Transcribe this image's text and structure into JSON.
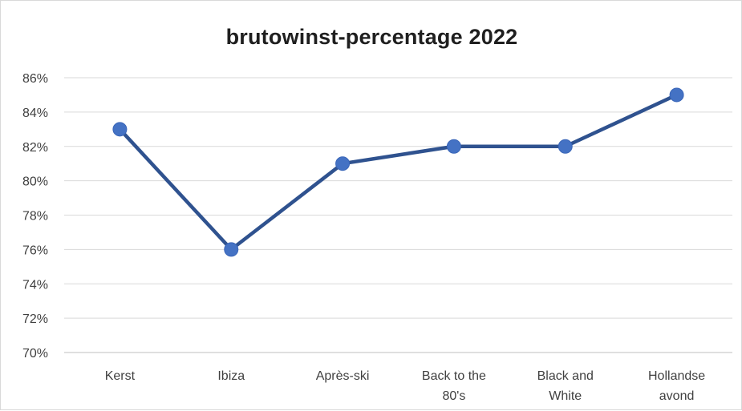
{
  "chart_data": {
    "type": "line",
    "title": "brutowinst-percentage 2022",
    "xlabel": "",
    "ylabel": "",
    "categories": [
      [
        "Kerst"
      ],
      [
        "Ibiza"
      ],
      [
        "Après-ski"
      ],
      [
        "Back to the",
        "80's"
      ],
      [
        "Black and",
        "White"
      ],
      [
        "Hollandse",
        "avond"
      ]
    ],
    "series": [
      {
        "values": [
          83,
          76,
          81,
          82,
          82,
          85
        ],
        "color": "#4472c4"
      }
    ],
    "ylim": [
      70,
      86
    ],
    "ytick_step": 2,
    "ytick_format": "percent",
    "grid": true,
    "legend": "none"
  }
}
